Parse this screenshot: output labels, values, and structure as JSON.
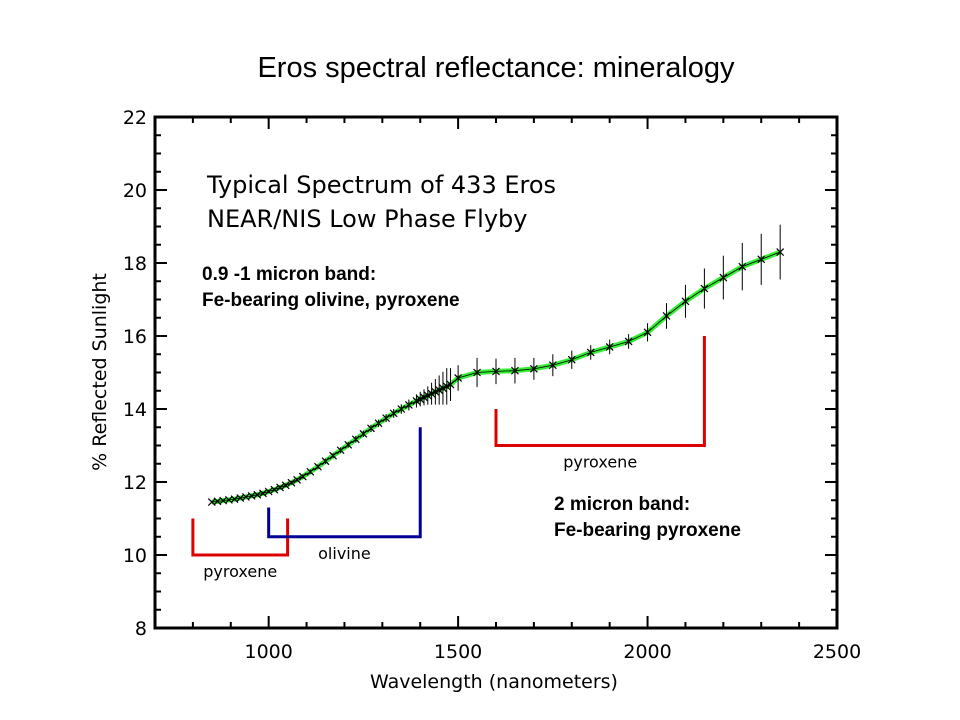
{
  "slide_title": "Eros spectral reflectance: mineralogy",
  "colors": {
    "fit_line": "#33ee33",
    "pyroxene_bracket": "#dd0000",
    "olivine_bracket": "#000099",
    "frame": "#000000"
  },
  "chart_data": {
    "type": "line",
    "xlabel": "Wavelength (nanometers)",
    "ylabel": "% Reflected Sunlight",
    "xlim": [
      700,
      2500
    ],
    "ylim": [
      8,
      22
    ],
    "x_ticks": [
      "1000",
      "1500",
      "2000",
      "2500"
    ],
    "y_ticks": [
      "8",
      "10",
      "12",
      "14",
      "16",
      "18",
      "20",
      "22"
    ],
    "grid": false,
    "plot_text": [
      "Typical Spectrum of 433 Eros",
      "NEAR/NIS Low Phase Flyby"
    ],
    "series": [
      {
        "x": [
          850,
          865,
          880,
          895,
          910,
          925,
          940,
          955,
          970,
          985,
          1000,
          1015,
          1030,
          1045,
          1060,
          1075,
          1090,
          1110,
          1130,
          1150,
          1170,
          1190,
          1210,
          1230,
          1250,
          1270,
          1290,
          1310,
          1330,
          1350,
          1370,
          1390,
          1400,
          1410,
          1420,
          1430,
          1440,
          1450,
          1460,
          1470,
          1480,
          1500,
          1550,
          1600,
          1650,
          1700,
          1750,
          1800,
          1850,
          1900,
          1950,
          2000,
          2050,
          2100,
          2150,
          2200,
          2250,
          2300,
          2350
        ],
        "y": [
          11.45,
          11.47,
          11.49,
          11.51,
          11.53,
          11.56,
          11.59,
          11.62,
          11.65,
          11.69,
          11.74,
          11.79,
          11.85,
          11.91,
          11.98,
          12.06,
          12.15,
          12.28,
          12.42,
          12.57,
          12.72,
          12.87,
          13.02,
          13.17,
          13.32,
          13.47,
          13.61,
          13.75,
          13.88,
          14.0,
          14.11,
          14.22,
          14.27,
          14.32,
          14.37,
          14.42,
          14.47,
          14.52,
          14.57,
          14.62,
          14.67,
          14.85,
          15.0,
          15.03,
          15.05,
          15.1,
          15.2,
          15.35,
          15.55,
          15.7,
          15.85,
          16.1,
          16.55,
          16.95,
          17.3,
          17.6,
          17.9,
          18.1,
          18.3
        ],
        "errors": [
          0.03,
          0.03,
          0.03,
          0.03,
          0.03,
          0.03,
          0.03,
          0.04,
          0.04,
          0.04,
          0.04,
          0.04,
          0.05,
          0.05,
          0.05,
          0.05,
          0.06,
          0.06,
          0.06,
          0.07,
          0.07,
          0.08,
          0.08,
          0.09,
          0.09,
          0.1,
          0.1,
          0.11,
          0.12,
          0.13,
          0.15,
          0.18,
          0.2,
          0.22,
          0.25,
          0.3,
          0.35,
          0.4,
          0.45,
          0.5,
          0.45,
          0.35,
          0.4,
          0.35,
          0.35,
          0.3,
          0.3,
          0.25,
          0.2,
          0.2,
          0.2,
          0.25,
          0.35,
          0.45,
          0.55,
          0.6,
          0.65,
          0.7,
          0.75
        ]
      }
    ],
    "brackets": [
      {
        "label": "pyroxene",
        "kind": "pyroxene",
        "x1": 800,
        "x2": 1050,
        "y_bottom": 10.0,
        "y_left_top": 11.0,
        "y_right_top": 11.0
      },
      {
        "label": "olivine",
        "kind": "olivine",
        "x1": 1000,
        "x2": 1400,
        "y_bottom": 10.5,
        "y_left_top": 11.3,
        "y_right_top": 13.5
      },
      {
        "label": "pyroxene",
        "kind": "pyroxene",
        "x1": 1600,
        "x2": 2150,
        "y_bottom": 13.0,
        "y_left_top": 14.0,
        "y_right_top": 16.0
      }
    ]
  },
  "annotations": {
    "band1": [
      "0.9 -1 micron band:",
      "Fe-bearing olivine, pyroxene"
    ],
    "band2": [
      "2 micron band:",
      "Fe-bearing pyroxene"
    ]
  }
}
